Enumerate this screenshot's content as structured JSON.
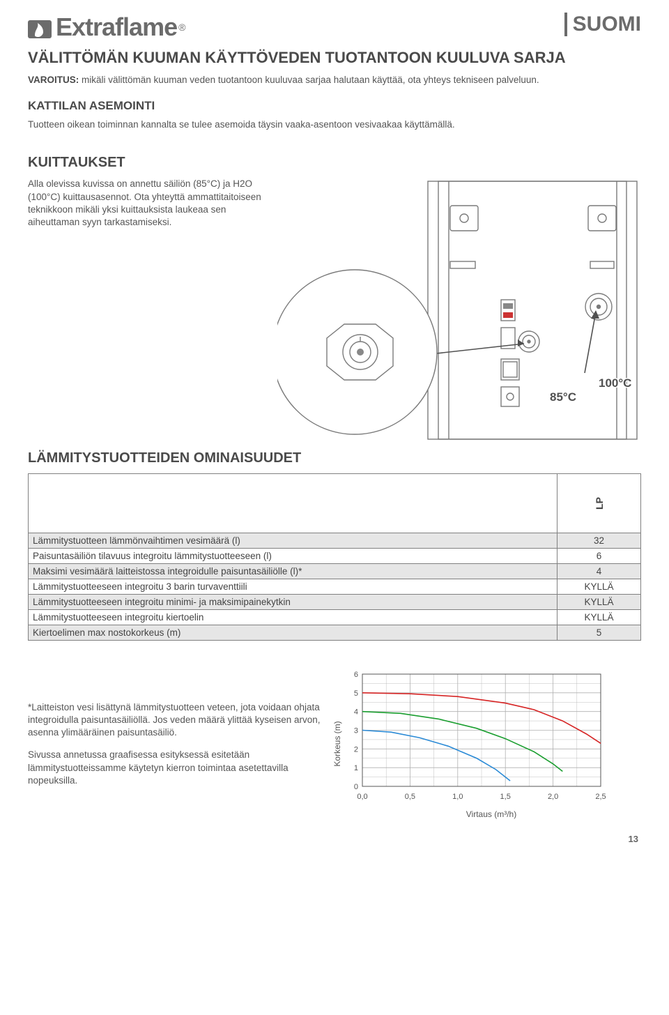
{
  "header": {
    "brand": "Extraflame",
    "lang": "SUOMI"
  },
  "section1": {
    "title": "VÄLITTÖMÄN KUUMAN KÄYTTÖVEDEN TUOTANTOON KUULUVA SARJA",
    "warn_label": "VAROITUS:",
    "warn_text": " mikäli välittömän kuuman veden tuotantoon kuuluvaa sarjaa halutaan käyttää, ota yhteys tekniseen palveluun."
  },
  "section2": {
    "title": "KATTILAN ASEMOINTI",
    "text": "Tuotteen oikean toiminnan kannalta se tulee asemoida täysin vaaka-asentoon vesivaakaa käyttämällä."
  },
  "section3": {
    "title": "KUITTAUKSET",
    "text": "Alla olevissa kuvissa on annettu säiliön (85°C) ja H2O (100°C) kuittausasennot. Ota yhteyttä ammattitaitoiseen teknikkoon mikäli yksi kuittauksista laukeaa sen aiheuttaman syyn tarkastamiseksi.",
    "label85": "85°C",
    "label100": "100°C"
  },
  "section4": {
    "title": "LÄMMITYSTUOTTEIDEN OMINAISUUDET",
    "col_lp": "LP",
    "rows": [
      {
        "label": "Lämmitystuotteen lämmönvaihtimen vesimäärä (l)",
        "value": "32"
      },
      {
        "label": "Paisuntasäiliön tilavuus integroitu lämmitystuotteeseen (l)",
        "value": "6"
      },
      {
        "label": "Maksimi vesimäärä laitteistossa integroidulle paisuntasäiliölle (l)*",
        "value": "4"
      },
      {
        "label": "Lämmitystuotteeseen integroitu 3 barin turvaventtiili",
        "value": "KYLLÄ"
      },
      {
        "label": "Lämmitystuotteeseen integroitu minimi- ja maksimipainekytkin",
        "value": "KYLLÄ"
      },
      {
        "label": "Lämmitystuotteeseen integroitu kiertoelin",
        "value": "KYLLÄ"
      },
      {
        "label": "Kiertoelimen max nostokorkeus (m)",
        "value": "5"
      }
    ]
  },
  "footer": {
    "note1": "*Laitteiston vesi lisättynä lämmitystuotteen veteen, jota voidaan ohjata integroidulla paisuntasäiliöllä. Jos veden määrä ylittää kyseisen arvon, asenna ylimääräinen paisuntasäiliö.",
    "note2": "Sivussa annetussa graafisessa esityksessä esitetään lämmitystuotteissamme käytetyn kierron toimintaa asetettavilla nopeuksilla."
  },
  "chart": {
    "ylabel": "Korkeus (m)",
    "xlabel": "Virtaus (m³/h)",
    "xlim": [
      0.0,
      2.5
    ],
    "ylim": [
      0,
      6
    ],
    "xticks": [
      "0,0",
      "0,5",
      "1,0",
      "1,5",
      "2,0",
      "2,5"
    ],
    "yticks": [
      "0",
      "1",
      "2",
      "3",
      "4",
      "5",
      "6"
    ],
    "grid_color": "#b0b0b0",
    "background": "#ffffff",
    "line_width": 1.6,
    "series": [
      {
        "color": "#d62424",
        "points": [
          [
            0.0,
            5.0
          ],
          [
            0.5,
            4.95
          ],
          [
            1.0,
            4.8
          ],
          [
            1.5,
            4.45
          ],
          [
            1.8,
            4.1
          ],
          [
            2.1,
            3.5
          ],
          [
            2.35,
            2.8
          ],
          [
            2.5,
            2.3
          ]
        ]
      },
      {
        "color": "#1a9e2f",
        "points": [
          [
            0.0,
            4.0
          ],
          [
            0.4,
            3.9
          ],
          [
            0.8,
            3.6
          ],
          [
            1.2,
            3.1
          ],
          [
            1.5,
            2.55
          ],
          [
            1.8,
            1.85
          ],
          [
            2.0,
            1.2
          ],
          [
            2.1,
            0.8
          ]
        ]
      },
      {
        "color": "#2a8ad6",
        "points": [
          [
            0.0,
            3.0
          ],
          [
            0.3,
            2.9
          ],
          [
            0.6,
            2.6
          ],
          [
            0.9,
            2.15
          ],
          [
            1.2,
            1.5
          ],
          [
            1.4,
            0.9
          ],
          [
            1.55,
            0.3
          ]
        ]
      }
    ]
  },
  "page_number": "13",
  "colors": {
    "text_gray": "#555555",
    "heading_gray": "#4a4a4a",
    "logo_gray": "#6b6b6b",
    "row_alt": "#e6e6e6",
    "border": "#808080"
  }
}
